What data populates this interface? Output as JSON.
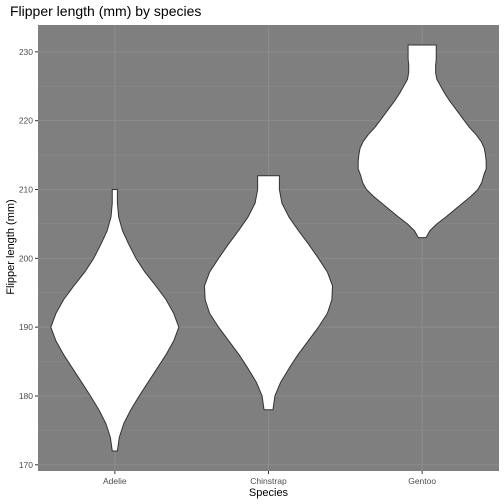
{
  "chart_data": {
    "type": "violin",
    "title": "Flipper length (mm) by species",
    "xlabel": "Species",
    "ylabel": "Flipper length (mm)",
    "categories": [
      "Adelie",
      "Chinstrap",
      "Gentoo"
    ],
    "ylim": [
      169.1,
      233.9
    ],
    "yticks": [
      170,
      180,
      190,
      200,
      210,
      220,
      230
    ],
    "panel_color": "#7f7f7f",
    "grid_color": "#8c8c8c",
    "violin_fill": "#ffffff",
    "violin_stroke": "#333333",
    "violins": [
      {
        "category": "Adelie",
        "min": 172,
        "max": 210,
        "profile": [
          [
            172,
            0.04
          ],
          [
            174,
            0.07
          ],
          [
            176,
            0.14
          ],
          [
            178,
            0.25
          ],
          [
            180,
            0.38
          ],
          [
            182,
            0.52
          ],
          [
            184,
            0.66
          ],
          [
            186,
            0.8
          ],
          [
            188,
            0.92
          ],
          [
            190,
            1.0
          ],
          [
            192,
            0.92
          ],
          [
            194,
            0.8
          ],
          [
            196,
            0.64
          ],
          [
            198,
            0.47
          ],
          [
            200,
            0.33
          ],
          [
            202,
            0.22
          ],
          [
            204,
            0.12
          ],
          [
            206,
            0.06
          ],
          [
            208,
            0.04
          ],
          [
            210,
            0.04
          ]
        ]
      },
      {
        "category": "Chinstrap",
        "min": 178,
        "max": 212,
        "profile": [
          [
            178,
            0.07
          ],
          [
            180,
            0.1
          ],
          [
            182,
            0.19
          ],
          [
            184,
            0.32
          ],
          [
            186,
            0.46
          ],
          [
            188,
            0.62
          ],
          [
            190,
            0.78
          ],
          [
            192,
            0.92
          ],
          [
            194,
            0.99
          ],
          [
            196,
            1.0
          ],
          [
            198,
            0.92
          ],
          [
            200,
            0.78
          ],
          [
            202,
            0.63
          ],
          [
            204,
            0.47
          ],
          [
            206,
            0.32
          ],
          [
            208,
            0.21
          ],
          [
            210,
            0.17
          ],
          [
            212,
            0.17
          ]
        ]
      },
      {
        "category": "Gentoo",
        "min": 203,
        "max": 231,
        "profile": [
          [
            203,
            0.06
          ],
          [
            204,
            0.12
          ],
          [
            205,
            0.23
          ],
          [
            206,
            0.37
          ],
          [
            207,
            0.5
          ],
          [
            208,
            0.63
          ],
          [
            209,
            0.76
          ],
          [
            210,
            0.87
          ],
          [
            211,
            0.93
          ],
          [
            212,
            0.96
          ],
          [
            213,
            1.0
          ],
          [
            214,
            1.0
          ],
          [
            215,
            0.99
          ],
          [
            216,
            0.97
          ],
          [
            217,
            0.92
          ],
          [
            218,
            0.84
          ],
          [
            219,
            0.74
          ],
          [
            220,
            0.66
          ],
          [
            221,
            0.58
          ],
          [
            222,
            0.5
          ],
          [
            223,
            0.42
          ],
          [
            224,
            0.35
          ],
          [
            225,
            0.29
          ],
          [
            226,
            0.23
          ],
          [
            227,
            0.21
          ],
          [
            228,
            0.21
          ],
          [
            229,
            0.22
          ],
          [
            230,
            0.22
          ],
          [
            231,
            0.22
          ]
        ]
      }
    ]
  }
}
